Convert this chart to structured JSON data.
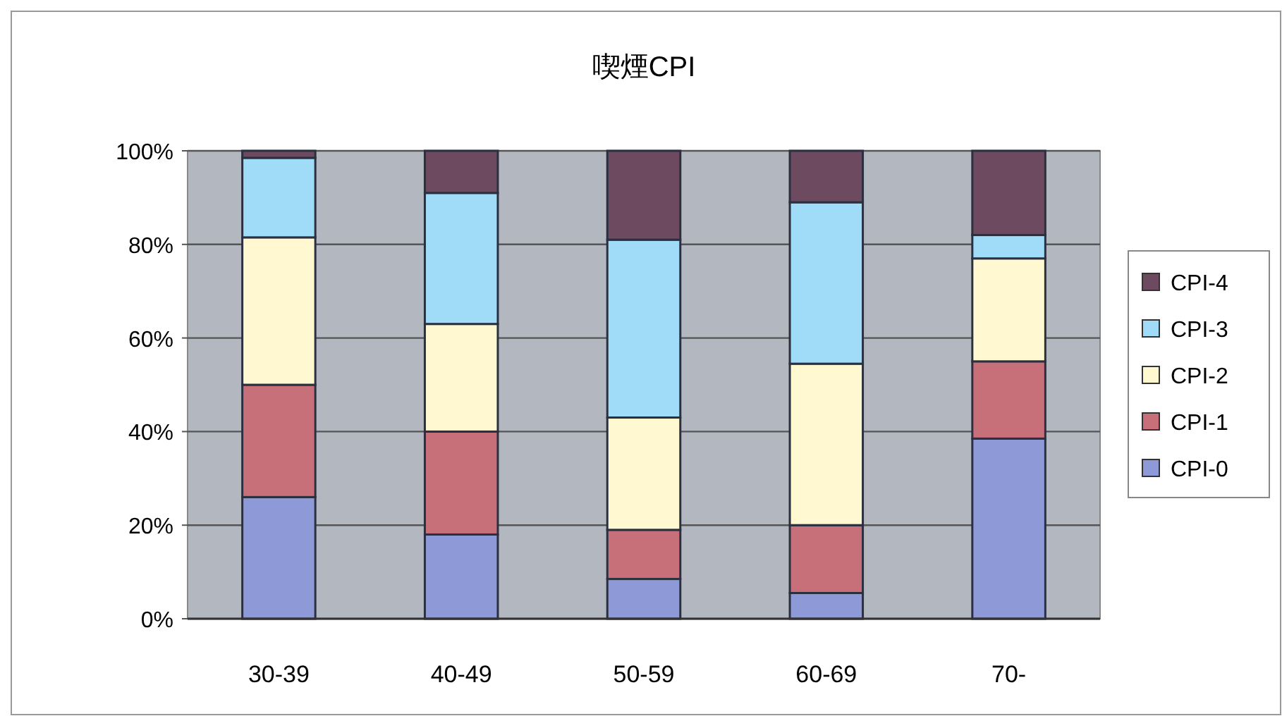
{
  "chart_data": {
    "type": "bar",
    "stacked": true,
    "title": "喫煙CPI",
    "categories": [
      "30-39",
      "40-49",
      "50-59",
      "60-69",
      "70-"
    ],
    "series": [
      {
        "name": "CPI-0",
        "color": "#8e99d8",
        "values": [
          26,
          18,
          8.5,
          5.5,
          38.5
        ]
      },
      {
        "name": "CPI-1",
        "color": "#c8707a",
        "values": [
          24,
          22,
          10.5,
          14.5,
          16.5
        ]
      },
      {
        "name": "CPI-2",
        "color": "#fff8d0",
        "values": [
          31.5,
          23,
          24,
          34.5,
          22
        ]
      },
      {
        "name": "CPI-3",
        "color": "#a0dcf8",
        "values": [
          17,
          28,
          38,
          34.5,
          5
        ]
      },
      {
        "name": "CPI-4",
        "color": "#6e4a60",
        "values": [
          1.5,
          9,
          19,
          11,
          18
        ]
      }
    ],
    "ylim": [
      0,
      100
    ],
    "yticks": [
      {
        "value": 0,
        "label": "0%"
      },
      {
        "value": 20,
        "label": "20%"
      },
      {
        "value": 40,
        "label": "40%"
      },
      {
        "value": 60,
        "label": "60%"
      },
      {
        "value": 80,
        "label": "80%"
      },
      {
        "value": 100,
        "label": "100%"
      }
    ],
    "grid": "y",
    "legend": "right"
  }
}
